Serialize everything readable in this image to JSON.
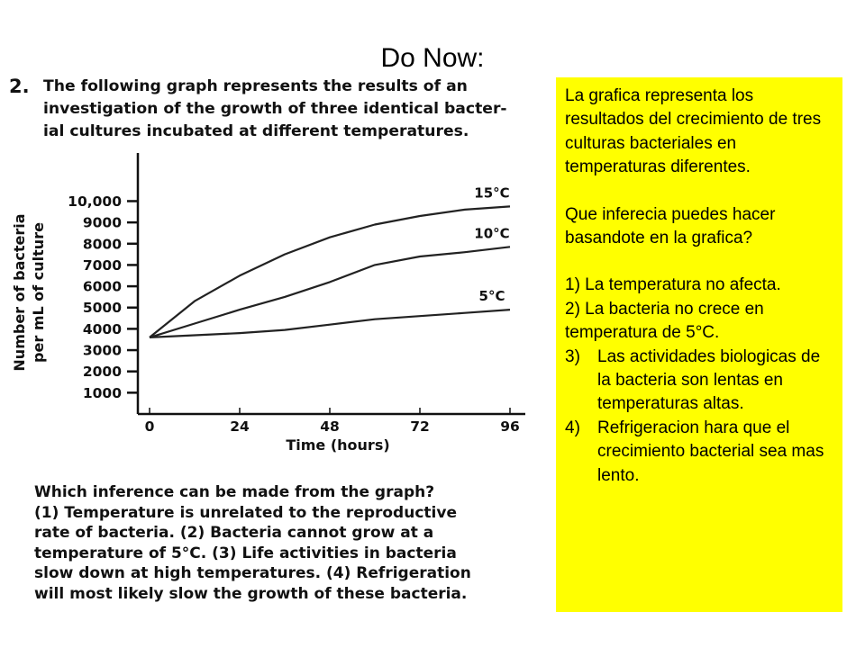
{
  "slide": {
    "title": "Do Now:"
  },
  "worksheet": {
    "question_number": "2.",
    "question_lines": [
      "The following graph represents the results of an",
      "investigation of the growth of three identical bacter-",
      "ial cultures incubated at different temperatures."
    ],
    "inference_lines": [
      "Which inference can be made from the graph?",
      "(1) Temperature is unrelated to the reproductive",
      "rate of bacteria.  (2) Bacteria cannot grow at a",
      "temperature of 5°C.  (3) Life activities in bacteria",
      "slow down at high temperatures.  (4) Refrigeration",
      "will most likely slow the growth of these bacteria."
    ]
  },
  "chart_data": {
    "type": "line",
    "xlabel": "Time (hours)",
    "ylabel_lines": [
      "Number of bacteria",
      "per mL of culture"
    ],
    "x_ticks": [
      0,
      24,
      48,
      72,
      96
    ],
    "y_ticks": [
      1000,
      2000,
      3000,
      4000,
      5000,
      6000,
      7000,
      8000,
      9000,
      10000
    ],
    "y_tick_labels": [
      "1000",
      "2000",
      "3000",
      "4000",
      "5000",
      "6000",
      "7000",
      "8000",
      "9000",
      "10,000"
    ],
    "xlim": [
      0,
      96
    ],
    "ylim": [
      0,
      11500
    ],
    "series": [
      {
        "name": "15°C",
        "x": [
          0,
          12,
          24,
          36,
          48,
          60,
          72,
          84,
          96
        ],
        "y": [
          3600,
          5300,
          6500,
          7500,
          8300,
          8900,
          9300,
          9600,
          9750
        ]
      },
      {
        "name": "10°C",
        "x": [
          0,
          12,
          24,
          36,
          48,
          60,
          72,
          84,
          96
        ],
        "y": [
          3600,
          4250,
          4900,
          5500,
          6200,
          7000,
          7400,
          7600,
          7850
        ]
      },
      {
        "name": "5°C",
        "x": [
          0,
          12,
          24,
          36,
          48,
          60,
          72,
          84,
          96
        ],
        "y": [
          3600,
          3700,
          3800,
          3950,
          4200,
          4450,
          4600,
          4750,
          4900
        ]
      }
    ]
  },
  "translation": {
    "intro": "La grafica representa los resultados del crecimiento de tres culturas bacteriales en temperaturas diferentes.",
    "question": "Que inferecia puedes hacer basandote en la grafica?",
    "plain_options": [
      "1) La temperatura no afecta.",
      "2) La bacteria no crece en temperatura de 5°C."
    ],
    "numbered_options": [
      {
        "num": "3)",
        "text": "Las actividades biologicas de la bacteria son lentas en temperaturas altas."
      },
      {
        "num": "4)",
        "text": "Refrigeracion hara que el crecimiento bacterial sea mas lento."
      }
    ]
  }
}
